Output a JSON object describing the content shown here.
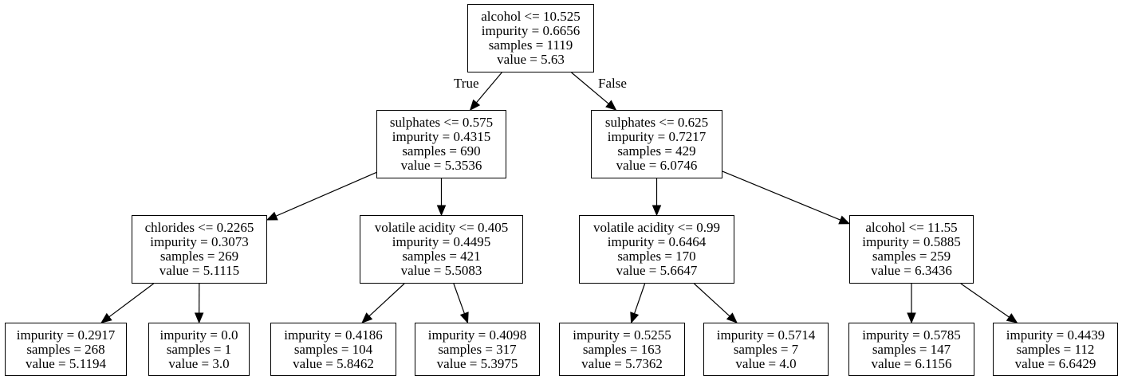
{
  "tree": {
    "nodes": [
      {
        "id": "n0",
        "lines": [
          "alcohol <= 10.525",
          "impurity = 0.6656",
          "samples = 1119",
          "value = 5.63"
        ]
      },
      {
        "id": "n1",
        "lines": [
          "sulphates <= 0.575",
          "impurity = 0.4315",
          "samples = 690",
          "value = 5.3536"
        ]
      },
      {
        "id": "n2",
        "lines": [
          "sulphates <= 0.625",
          "impurity = 0.7217",
          "samples = 429",
          "value = 6.0746"
        ]
      },
      {
        "id": "n3",
        "lines": [
          "chlorides <= 0.2265",
          "impurity = 0.3073",
          "samples = 269",
          "value = 5.1115"
        ]
      },
      {
        "id": "n4",
        "lines": [
          "volatile acidity <= 0.405",
          "impurity = 0.4495",
          "samples = 421",
          "value = 5.5083"
        ]
      },
      {
        "id": "n5",
        "lines": [
          "volatile acidity <= 0.99",
          "impurity = 0.6464",
          "samples = 170",
          "value = 5.6647"
        ]
      },
      {
        "id": "n6",
        "lines": [
          "alcohol <= 11.55",
          "impurity = 0.5885",
          "samples = 259",
          "value = 6.3436"
        ]
      },
      {
        "id": "n7",
        "lines": [
          "impurity = 0.2917",
          "samples = 268",
          "value = 5.1194"
        ]
      },
      {
        "id": "n8",
        "lines": [
          "impurity = 0.0",
          "samples = 1",
          "value = 3.0"
        ]
      },
      {
        "id": "n9",
        "lines": [
          "impurity = 0.4186",
          "samples = 104",
          "value = 5.8462"
        ]
      },
      {
        "id": "n10",
        "lines": [
          "impurity = 0.4098",
          "samples = 317",
          "value = 5.3975"
        ]
      },
      {
        "id": "n11",
        "lines": [
          "impurity = 0.5255",
          "samples = 163",
          "value = 5.7362"
        ]
      },
      {
        "id": "n12",
        "lines": [
          "impurity = 0.5714",
          "samples = 7",
          "value = 4.0"
        ]
      },
      {
        "id": "n13",
        "lines": [
          "impurity = 0.5785",
          "samples = 147",
          "value = 6.1156"
        ]
      },
      {
        "id": "n14",
        "lines": [
          "impurity = 0.4439",
          "samples = 112",
          "value = 6.6429"
        ]
      }
    ],
    "edges": [
      {
        "from": "n0",
        "to": "n1"
      },
      {
        "from": "n0",
        "to": "n2"
      },
      {
        "from": "n1",
        "to": "n3"
      },
      {
        "from": "n1",
        "to": "n4"
      },
      {
        "from": "n2",
        "to": "n5"
      },
      {
        "from": "n2",
        "to": "n6"
      },
      {
        "from": "n3",
        "to": "n7"
      },
      {
        "from": "n3",
        "to": "n8"
      },
      {
        "from": "n4",
        "to": "n9"
      },
      {
        "from": "n4",
        "to": "n10"
      },
      {
        "from": "n5",
        "to": "n11"
      },
      {
        "from": "n5",
        "to": "n12"
      },
      {
        "from": "n6",
        "to": "n13"
      },
      {
        "from": "n6",
        "to": "n14"
      }
    ],
    "branch_labels": {
      "true": "True",
      "false": "False"
    }
  }
}
